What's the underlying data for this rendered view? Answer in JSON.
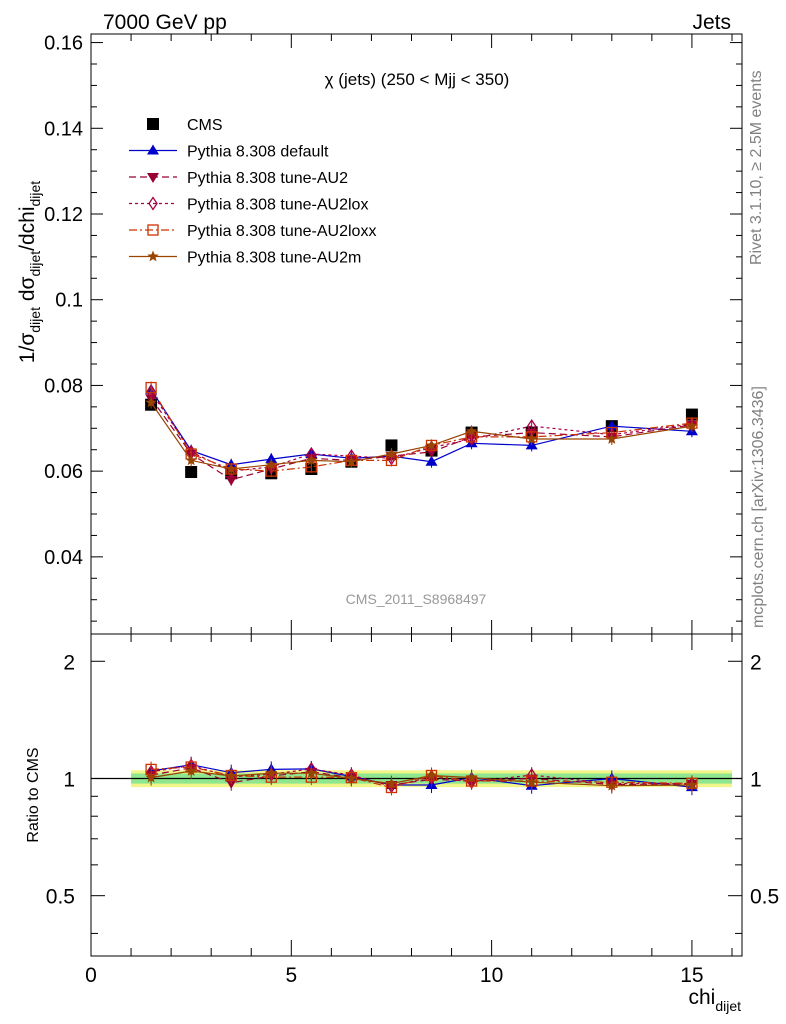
{
  "header": {
    "left": "7000 GeV pp",
    "right": "Jets"
  },
  "side_text": {
    "rivet": "Rivet 3.1.10, ≥ 2.5M events",
    "mcplots": "mcplots.cern.ch [arXiv:1306.3436]"
  },
  "chart_data": [
    {
      "type": "scatter",
      "title": "χ (jets) (250 < Mjj <  350)",
      "watermark": "CMS_2011_S8968497",
      "ylabel": "1/σdijet dσdijet/dchidijet",
      "xlim": [
        0,
        16.25
      ],
      "ylim": [
        0.022,
        0.162
      ],
      "yticks": [
        0.04,
        0.06,
        0.08,
        0.1,
        0.12,
        0.14,
        0.16
      ],
      "ytick_labels": [
        "0.04",
        "0.06",
        "0.08",
        "0.1",
        "0.12",
        "0.14",
        "0.16"
      ],
      "x": [
        1.5,
        2.5,
        3.5,
        4.5,
        5.5,
        6.5,
        7.5,
        8.5,
        9.5,
        11.0,
        13.0,
        15.0
      ],
      "series": [
        {
          "name": "CMS",
          "color": "#000000",
          "marker": "square-filled",
          "line": "none",
          "values": [
            0.0755,
            0.0598,
            0.0595,
            0.0595,
            0.0605,
            0.0622,
            0.066,
            0.0648,
            0.069,
            0.069,
            0.0705,
            0.0732
          ]
        },
        {
          "name": "Pythia 8.308 default",
          "color": "#0000cc",
          "marker": "triangle-up-filled",
          "line": "solid",
          "values": [
            0.079,
            0.0648,
            0.0615,
            0.0628,
            0.064,
            0.063,
            0.0635,
            0.0622,
            0.0665,
            0.066,
            0.0705,
            0.0693
          ]
        },
        {
          "name": "Pythia 8.308 tune-AU2",
          "color": "#990033",
          "marker": "triangle-down-filled",
          "line": "dashed",
          "values": [
            0.077,
            0.064,
            0.058,
            0.0605,
            0.063,
            0.0625,
            0.0635,
            0.0645,
            0.068,
            0.069,
            0.068,
            0.0708
          ]
        },
        {
          "name": "Pythia 8.308 tune-AU2lox",
          "color": "#aa0044",
          "marker": "diamond-open",
          "line": "dotted",
          "values": [
            0.0785,
            0.0645,
            0.06,
            0.061,
            0.064,
            0.0635,
            0.063,
            0.0655,
            0.0675,
            0.0705,
            0.0685,
            0.071
          ]
        },
        {
          "name": "Pythia 8.308 tune-AU2loxx",
          "color": "#cc3300",
          "marker": "square-open",
          "line": "dashdot",
          "values": [
            0.0795,
            0.064,
            0.0605,
            0.06,
            0.061,
            0.0625,
            0.0625,
            0.066,
            0.068,
            0.068,
            0.069,
            0.0712
          ]
        },
        {
          "name": "Pythia 8.308 tune-AU2m",
          "color": "#994400",
          "marker": "star",
          "line": "solid",
          "values": [
            0.076,
            0.0625,
            0.0605,
            0.0615,
            0.0625,
            0.0622,
            0.064,
            0.066,
            0.0693,
            0.0675,
            0.0675,
            0.0705
          ]
        }
      ],
      "legend_position": "top-left",
      "grid": false
    },
    {
      "type": "scatter",
      "xlabel": "chidijet",
      "ylabel": "Ratio to CMS",
      "xlim": [
        0,
        16.25
      ],
      "ylim": [
        0.35,
        2.35
      ],
      "log_scale_y": true,
      "xticks": [
        0,
        5,
        10,
        15
      ],
      "xtick_labels": [
        "0",
        "5",
        "10",
        "15"
      ],
      "yticks": [
        0.5,
        1,
        2
      ],
      "ytick_labels": [
        "0.5",
        "1",
        "2"
      ],
      "x": [
        1.5,
        2.5,
        3.5,
        4.5,
        5.5,
        6.5,
        7.5,
        8.5,
        9.5,
        11.0,
        13.0,
        15.0
      ],
      "band_inner": [
        0.97,
        1.03
      ],
      "band_outer": [
        0.95,
        1.05
      ],
      "series": [
        {
          "name": "Pythia 8.308 default",
          "values": [
            1.045,
            1.085,
            1.035,
            1.055,
            1.058,
            1.012,
            0.962,
            0.962,
            1.005,
            0.958,
            1.0,
            0.95
          ]
        },
        {
          "name": "Pythia 8.308 tune-AU2",
          "values": [
            1.02,
            1.065,
            0.975,
            1.015,
            1.04,
            1.005,
            0.962,
            0.995,
            0.985,
            1.0,
            0.965,
            0.968
          ]
        },
        {
          "name": "Pythia 8.308 tune-AU2lox",
          "values": [
            1.04,
            1.08,
            1.01,
            1.025,
            1.058,
            1.02,
            0.955,
            1.01,
            0.98,
            1.02,
            0.97,
            0.97
          ]
        },
        {
          "name": "Pythia 8.308 tune-AU2loxx",
          "values": [
            1.055,
            1.07,
            1.018,
            1.008,
            1.008,
            1.005,
            0.948,
            1.018,
            0.985,
            0.985,
            0.978,
            0.972
          ]
        },
        {
          "name": "Pythia 8.308 tune-AU2m",
          "values": [
            1.005,
            1.045,
            1.015,
            1.032,
            1.032,
            1.0,
            0.97,
            1.018,
            1.005,
            0.978,
            0.958,
            0.962
          ]
        }
      ]
    }
  ]
}
